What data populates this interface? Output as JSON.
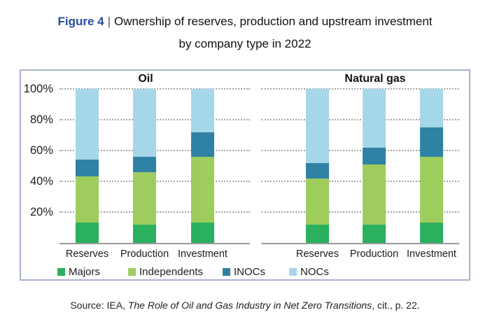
{
  "title": {
    "figure_label": "Figure 4",
    "separator": "|",
    "line1": "Ownership of reserves, production and upstream investment",
    "line2": "by company type in 2022"
  },
  "source": {
    "prefix": "Source: IEA, ",
    "work_title": "The Role of Oil and Gas Industry in Net Zero Transitions",
    "suffix": ", cit., p. 22."
  },
  "colors": {
    "figure_label_blue": "#2a4a9f",
    "box_border": "#a7b1d0",
    "gridline": "#a3a3a3",
    "axis_line": "#9b9b9b",
    "majors": "#2bb05e",
    "independents": "#9ecd5e",
    "inocs": "#2f82a3",
    "nocs": "#a6d7e8"
  },
  "chart_data": {
    "type": "bar",
    "stacked": true,
    "unit": "percent",
    "ylim": [
      0,
      100
    ],
    "yticks": [
      20,
      40,
      60,
      80,
      100
    ],
    "ytick_suffix": "%",
    "grid": "dotted horizontal",
    "legend_position": "bottom",
    "categories": [
      "Reserves",
      "Production",
      "Investment"
    ],
    "legend": [
      "Majors",
      "Independents",
      "INOCs",
      "NOCs"
    ],
    "series_colors": {
      "Majors": "#2bb05e",
      "Independents": "#9ecd5e",
      "INOCs": "#2f82a3",
      "NOCs": "#a6d7e8"
    },
    "panels": [
      {
        "title": "Oil",
        "series": [
          {
            "name": "Majors",
            "values": [
              13,
              12,
              13
            ]
          },
          {
            "name": "Independents",
            "values": [
              30,
              34,
              43
            ]
          },
          {
            "name": "INOCs",
            "values": [
              11,
              10,
              16
            ]
          },
          {
            "name": "NOCs",
            "values": [
              46,
              44,
              28
            ]
          }
        ]
      },
      {
        "title": "Natural gas",
        "series": [
          {
            "name": "Majors",
            "values": [
              12,
              12,
              13
            ]
          },
          {
            "name": "Independents",
            "values": [
              30,
              39,
              43
            ]
          },
          {
            "name": "INOCs",
            "values": [
              10,
              11,
              19
            ]
          },
          {
            "name": "NOCs",
            "values": [
              48,
              38,
              25
            ]
          }
        ]
      }
    ]
  }
}
